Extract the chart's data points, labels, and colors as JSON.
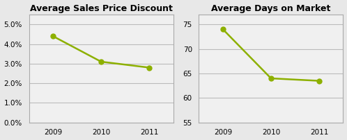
{
  "years": [
    2009,
    2010,
    2011
  ],
  "discount_values": [
    0.044,
    0.031,
    0.028
  ],
  "days_values": [
    74,
    64,
    63.5
  ],
  "title1": "Average Sales Price Discount",
  "title2": "Average Days on Market",
  "ylim1": [
    0.0,
    0.055
  ],
  "ylim2": [
    55,
    77
  ],
  "yticks1": [
    0.0,
    0.01,
    0.02,
    0.03,
    0.04,
    0.05
  ],
  "yticks2": [
    55,
    60,
    65,
    70,
    75
  ],
  "line_color": "#8DB000",
  "marker": "o",
  "marker_size": 5,
  "bg_color": "#E8E8E8",
  "plot_bg_color": "#F0F0F0",
  "grid_color": "#BBBBBB",
  "spine_color": "#AAAAAA",
  "title_fontsize": 9,
  "tick_fontsize": 7.5
}
